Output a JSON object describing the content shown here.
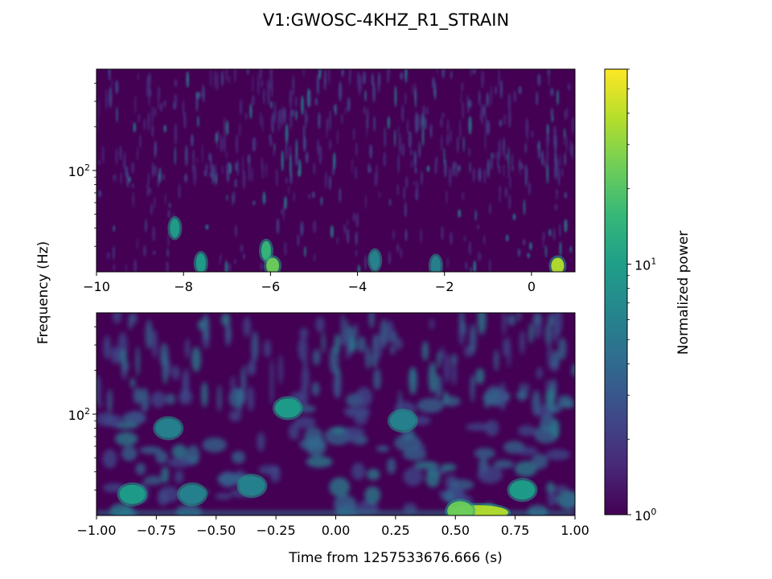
{
  "figure": {
    "title": "V1:GWOSC-4KHZ_R1_STRAIN",
    "ylabel": "Frequency (Hz)",
    "xlabel": "Time from 1257533676.666 (s)"
  },
  "colors": {
    "viridis": [
      "#440154",
      "#482878",
      "#3e4989",
      "#31688e",
      "#26828e",
      "#1f9e89",
      "#35b779",
      "#6ece58",
      "#b5de2b",
      "#fde725"
    ],
    "background": "#440154"
  },
  "chart_data": [
    {
      "type": "heatmap",
      "panel": "top",
      "x_ticks": [
        -10,
        -8,
        -6,
        -4,
        -2,
        0
      ],
      "x_tick_labels": [
        "−10",
        "−8",
        "−6",
        "−4",
        "−2",
        "0"
      ],
      "xlim": [
        -10,
        1
      ],
      "y_scale": "log",
      "ylim": [
        20,
        500
      ],
      "y_ticks": [
        100
      ],
      "y_tick_labels": [
        "10",
        "2"
      ],
      "hotspots": [
        {
          "t": -8.2,
          "f": 40,
          "power": 8
        },
        {
          "t": -7.6,
          "f": 23,
          "power": 9
        },
        {
          "t": -6.1,
          "f": 28,
          "power": 14
        },
        {
          "t": -5.95,
          "f": 22,
          "power": 25
        },
        {
          "t": -3.6,
          "f": 24,
          "power": 6
        },
        {
          "t": -2.2,
          "f": 22,
          "power": 7
        },
        {
          "t": 0.6,
          "f": 22,
          "power": 40
        }
      ]
    },
    {
      "type": "heatmap",
      "panel": "bottom",
      "x_ticks": [
        -1.0,
        -0.75,
        -0.5,
        -0.25,
        0.0,
        0.25,
        0.5,
        0.75,
        1.0
      ],
      "x_tick_labels": [
        "−1.00",
        "−0.75",
        "−0.50",
        "−0.25",
        "0.00",
        "0.25",
        "0.50",
        "0.75",
        "1.00"
      ],
      "xlim": [
        -1,
        1
      ],
      "y_scale": "log",
      "ylim": [
        20,
        500
      ],
      "y_ticks": [
        100
      ],
      "y_tick_labels": [
        "10",
        "2"
      ],
      "hotspots": [
        {
          "t": 0.6,
          "f": 21,
          "power": 45
        },
        {
          "t": 0.52,
          "f": 21.5,
          "power": 20
        },
        {
          "t": -0.85,
          "f": 28,
          "power": 8
        },
        {
          "t": -0.6,
          "f": 28,
          "power": 7
        },
        {
          "t": -0.35,
          "f": 32,
          "power": 6
        },
        {
          "t": -0.2,
          "f": 110,
          "power": 8
        },
        {
          "t": 0.28,
          "f": 90,
          "power": 7
        },
        {
          "t": 0.78,
          "f": 30,
          "power": 8
        },
        {
          "t": -0.7,
          "f": 80,
          "power": 6
        }
      ]
    }
  ],
  "colorbar": {
    "label": "Normalized power",
    "scale": "log",
    "range": [
      1,
      60
    ],
    "ticks": [
      1,
      10
    ],
    "tick_labels": [
      {
        "base": "10",
        "exp": "0"
      },
      {
        "base": "10",
        "exp": "1"
      }
    ]
  }
}
